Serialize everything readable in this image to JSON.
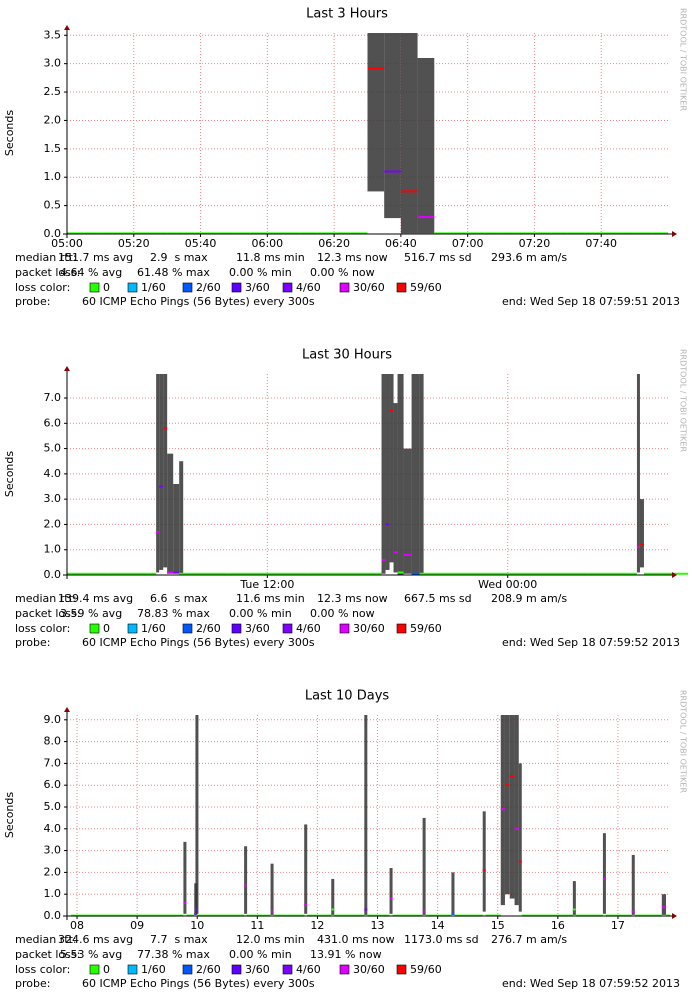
{
  "chart_data": [
    {
      "type": "smoke",
      "title": "Last 3 Hours",
      "y_label": "Seconds",
      "watermark": "RRDTOOL / TOBI OETIKER",
      "xlim": [
        300,
        480
      ],
      "xticks": [
        {
          "value": 300,
          "label": "05:00"
        },
        {
          "value": 320,
          "label": "05:20"
        },
        {
          "value": 340,
          "label": "05:40"
        },
        {
          "value": 360,
          "label": "06:00"
        },
        {
          "value": 380,
          "label": "06:20"
        },
        {
          "value": 400,
          "label": "06:40"
        },
        {
          "value": 420,
          "label": "07:00"
        },
        {
          "value": 440,
          "label": "07:20"
        },
        {
          "value": 460,
          "label": "07:40"
        }
      ],
      "ylim": [
        0,
        3.54
      ],
      "yticks": [
        {
          "value": 0,
          "label": "0.0"
        },
        {
          "value": 0.5,
          "label": "0.5"
        },
        {
          "value": 1,
          "label": "1.0"
        },
        {
          "value": 1.5,
          "label": "1.5"
        },
        {
          "value": 2,
          "label": "2.0"
        },
        {
          "value": 2.5,
          "label": "2.5"
        },
        {
          "value": 3,
          "label": "3.0"
        },
        {
          "value": 3.5,
          "label": "3.5"
        }
      ],
      "grid": true,
      "x": [
        300,
        305,
        310,
        315,
        320,
        325,
        330,
        335,
        340,
        345,
        350,
        355,
        360,
        365,
        370,
        375,
        380,
        385,
        390,
        395,
        400,
        405,
        410,
        415,
        420,
        425,
        430,
        435,
        440,
        445,
        450,
        455,
        460,
        465,
        470,
        475
      ],
      "values": [
        0.012,
        0.012,
        0.012,
        0.012,
        0.012,
        0.012,
        0.012,
        0.012,
        0.012,
        0.012,
        0.012,
        0.012,
        0.012,
        0.012,
        0.012,
        0.012,
        0.012,
        0.012,
        2.92,
        1.1,
        0.75,
        0.3,
        0.012,
        0.012,
        0.012,
        0.012,
        0.012,
        0.012,
        0.012,
        0.012,
        0.012,
        0.012,
        0.012,
        0.012,
        0.012,
        0.012
      ],
      "low": [
        null,
        null,
        null,
        null,
        null,
        null,
        null,
        null,
        null,
        null,
        null,
        null,
        null,
        null,
        null,
        null,
        null,
        null,
        0.75,
        0.28,
        0.012,
        0.012,
        null,
        null,
        null,
        null,
        null,
        null,
        null,
        null,
        null,
        null,
        null,
        null,
        null,
        null
      ],
      "high": [
        null,
        null,
        null,
        null,
        null,
        null,
        null,
        null,
        null,
        null,
        null,
        null,
        null,
        null,
        null,
        null,
        null,
        null,
        3.54,
        3.54,
        3.54,
        3.1,
        null,
        null,
        null,
        null,
        null,
        null,
        null,
        null,
        null,
        null,
        null,
        null,
        null,
        null
      ],
      "loss": [
        0,
        0,
        0,
        0,
        0,
        0,
        0,
        0,
        0,
        0,
        0,
        0,
        0,
        0,
        0,
        0,
        0,
        0,
        59,
        4,
        59,
        30,
        0,
        0,
        0,
        0,
        0,
        0,
        0,
        0,
        0,
        0,
        0,
        0,
        0,
        0
      ],
      "stats": [
        {
          "label": "median rtt:",
          "items": [
            "151.7 ms avg",
            "2.9  s max",
            "11.8 ms min",
            "12.3 ms now",
            "516.7 ms sd",
            "293.6 m am/s"
          ]
        },
        {
          "label": "packet loss:",
          "items": [
            "4.64 % avg",
            "61.48 % max",
            "0.00 % min",
            "0.00 % now"
          ]
        }
      ],
      "legend": {
        "label": "loss color:",
        "items": [
          {
            "value": 0,
            "label": "0",
            "color": "#26ff00"
          },
          {
            "value": 1,
            "label": "1/60",
            "color": "#00b8ff"
          },
          {
            "value": 2,
            "label": "2/60",
            "color": "#0059ff"
          },
          {
            "value": 3,
            "label": "3/60",
            "color": "#5e00ff"
          },
          {
            "value": 4,
            "label": "4/60",
            "color": "#7e00ff"
          },
          {
            "value": 30,
            "label": "30/60",
            "color": "#dd00ff"
          },
          {
            "value": 59,
            "label": "59/60",
            "color": "#ff0000"
          }
        ]
      },
      "probe": {
        "label": "probe:",
        "text": "60 ICMP Echo Pings (56 Bytes) every 300s"
      },
      "end": "end: Wed Sep 18 07:59:51 2013"
    },
    {
      "type": "smoke",
      "title": "Last 30 Hours",
      "y_label": "Seconds",
      "watermark": "RRDTOOL / TOBI OETIKER",
      "xlim": [
        2,
        32
      ],
      "xticks": [
        {
          "value": 12,
          "label": "Tue 12:00"
        },
        {
          "value": 24,
          "label": "Wed 00:00"
        }
      ],
      "ylim": [
        0,
        7.95
      ],
      "yticks": [
        {
          "value": 0,
          "label": "0.0"
        },
        {
          "value": 1,
          "label": "1.0"
        },
        {
          "value": 2,
          "label": "2.0"
        },
        {
          "value": 3,
          "label": "3.0"
        },
        {
          "value": 4,
          "label": "4.0"
        },
        {
          "value": 5,
          "label": "5.0"
        },
        {
          "value": 6,
          "label": "6.0"
        },
        {
          "value": 7,
          "label": "7.0"
        }
      ],
      "grid": true,
      "x": [
        2,
        4,
        6,
        6.45,
        6.6,
        6.8,
        7.0,
        7.3,
        7.6,
        7.8,
        10,
        14,
        17.5,
        17.7,
        17.9,
        18.1,
        18.3,
        18.5,
        18.8,
        19.2,
        19.6,
        19.8,
        24,
        28,
        30.2,
        30.45,
        30.6,
        30.8,
        31.9
      ],
      "values": [
        0.05,
        0.05,
        0.05,
        1.7,
        3.5,
        5.8,
        0.1,
        0.1,
        0.05,
        0.05,
        0.05,
        0.05,
        0.05,
        0.6,
        2.0,
        6.5,
        0.9,
        0.1,
        0.8,
        0.05,
        0.05,
        0.05,
        0.05,
        0.05,
        0.05,
        1.1,
        1.2,
        0.05,
        0.05
      ],
      "low": [
        null,
        null,
        null,
        0.1,
        0.2,
        0.3,
        0.05,
        0.05,
        0.02,
        null,
        null,
        null,
        null,
        0.05,
        0.2,
        0.5,
        0.1,
        0.02,
        0.05,
        0.02,
        0.02,
        null,
        null,
        null,
        null,
        0.1,
        0.3,
        null,
        null
      ],
      "high": [
        null,
        null,
        null,
        7.95,
        7.95,
        7.95,
        4.8,
        3.6,
        4.5,
        null,
        null,
        null,
        null,
        7.95,
        7.95,
        7.95,
        6.8,
        7.95,
        5.0,
        7.95,
        7.95,
        null,
        null,
        null,
        null,
        7.95,
        3.0,
        null,
        null
      ],
      "loss": [
        0,
        0,
        0,
        30,
        4,
        59,
        30,
        4,
        0,
        0,
        0,
        0,
        0,
        30,
        4,
        59,
        30,
        0,
        30,
        2,
        0,
        0,
        0,
        0,
        0,
        30,
        59,
        0,
        0
      ],
      "stats": [
        {
          "label": "median rtt:",
          "items": [
            "139.4 ms avg",
            "6.6  s max",
            "11.6 ms min",
            "12.3 ms now",
            "667.5 ms sd",
            "208.9 m am/s"
          ]
        },
        {
          "label": "packet loss:",
          "items": [
            "3.59 % avg",
            "78.83 % max",
            "0.00 % min",
            "0.00 % now"
          ]
        }
      ],
      "legend": {
        "label": "loss color:",
        "items": [
          {
            "value": 0,
            "label": "0",
            "color": "#26ff00"
          },
          {
            "value": 1,
            "label": "1/60",
            "color": "#00b8ff"
          },
          {
            "value": 2,
            "label": "2/60",
            "color": "#0059ff"
          },
          {
            "value": 3,
            "label": "3/60",
            "color": "#5e00ff"
          },
          {
            "value": 4,
            "label": "4/60",
            "color": "#7e00ff"
          },
          {
            "value": 30,
            "label": "30/60",
            "color": "#dd00ff"
          },
          {
            "value": 59,
            "label": "59/60",
            "color": "#ff0000"
          }
        ]
      },
      "probe": {
        "label": "probe:",
        "text": "60 ICMP Echo Pings (56 Bytes) every 300s"
      },
      "end": "end: Wed Sep 18 07:59:52 2013"
    },
    {
      "type": "smoke",
      "title": "Last 10 Days",
      "y_label": "Seconds",
      "watermark": "RRDTOOL / TOBI OETIKER",
      "xlim": [
        8.333,
        18.333
      ],
      "xticks": [
        {
          "value": 8.5,
          "label": "08"
        },
        {
          "value": 9.5,
          "label": "09"
        },
        {
          "value": 10.5,
          "label": "10"
        },
        {
          "value": 11.5,
          "label": "11"
        },
        {
          "value": 12.5,
          "label": "12"
        },
        {
          "value": 13.5,
          "label": "13"
        },
        {
          "value": 14.5,
          "label": "14"
        },
        {
          "value": 15.5,
          "label": "15"
        },
        {
          "value": 16.5,
          "label": "16"
        },
        {
          "value": 17.5,
          "label": "17"
        }
      ],
      "ylim": [
        0,
        9.22
      ],
      "yticks": [
        {
          "value": 0,
          "label": "0.0"
        },
        {
          "value": 1,
          "label": "1.0"
        },
        {
          "value": 2,
          "label": "2.0"
        },
        {
          "value": 3,
          "label": "3.0"
        },
        {
          "value": 4,
          "label": "4.0"
        },
        {
          "value": 5,
          "label": "5.0"
        },
        {
          "value": 6,
          "label": "6.0"
        },
        {
          "value": 7,
          "label": "7.0"
        },
        {
          "value": 8,
          "label": "8.0"
        },
        {
          "value": 9,
          "label": "9.0"
        }
      ],
      "grid": true,
      "x": [
        8.4,
        9.5,
        10.2,
        10.27,
        10.32,
        10.45,
        10.47,
        10.5,
        11.28,
        11.32,
        11.72,
        11.77,
        12.28,
        12.33,
        12.73,
        12.78,
        13.28,
        13.33,
        13.7,
        13.75,
        14.25,
        14.3,
        14.73,
        14.78,
        15.25,
        15.3,
        15.55,
        15.62,
        15.7,
        15.78,
        15.85,
        15.9,
        16.75,
        16.8,
        17.25,
        17.3,
        17.73,
        17.78,
        18.23,
        18.3
      ],
      "values": [
        0.02,
        0.02,
        0.02,
        0.6,
        0.02,
        0.1,
        0.3,
        0.02,
        1.4,
        0.02,
        0.2,
        0.02,
        0.5,
        0.02,
        0.3,
        0.02,
        0.3,
        0.02,
        0.8,
        0.02,
        0.2,
        0.02,
        0.1,
        0.02,
        2.1,
        0.02,
        4.9,
        6.0,
        6.4,
        4.0,
        2.5,
        0.02,
        0.3,
        0.02,
        1.7,
        0.02,
        0.2,
        0.02,
        0.4,
        0.02
      ],
      "low": [
        null,
        null,
        null,
        0.1,
        null,
        0.05,
        0.1,
        null,
        0.1,
        null,
        0.05,
        null,
        0.1,
        null,
        0.05,
        null,
        0.05,
        null,
        0.1,
        null,
        0.05,
        null,
        0.05,
        null,
        0.2,
        null,
        0.5,
        1.0,
        0.8,
        0.5,
        0.2,
        null,
        0.05,
        null,
        0.1,
        null,
        0.05,
        null,
        0.05,
        null
      ],
      "high": [
        null,
        null,
        null,
        3.4,
        null,
        1.5,
        9.22,
        null,
        3.2,
        null,
        2.4,
        null,
        4.2,
        null,
        1.7,
        null,
        9.22,
        null,
        2.2,
        null,
        4.5,
        null,
        2.0,
        null,
        4.8,
        null,
        9.22,
        9.22,
        9.22,
        9.22,
        7.0,
        null,
        1.6,
        null,
        3.8,
        null,
        2.8,
        null,
        1.0,
        null
      ],
      "loss": [
        0,
        0,
        0,
        30,
        0,
        4,
        4,
        0,
        30,
        0,
        30,
        0,
        30,
        0,
        0,
        0,
        4,
        0,
        30,
        0,
        30,
        0,
        2,
        0,
        59,
        0,
        30,
        59,
        59,
        30,
        59,
        0,
        0,
        0,
        30,
        0,
        30,
        0,
        30,
        0
      ],
      "stats": [
        {
          "label": "median rtt:",
          "items": [
            "324.6 ms avg",
            "7.7  s max",
            "12.0 ms min",
            "431.0 ms now",
            "1173.0 ms sd",
            "276.7 m am/s"
          ]
        },
        {
          "label": "packet loss:",
          "items": [
            "5.53 % avg",
            "77.38 % max",
            "0.00 % min",
            "13.91 % now"
          ]
        }
      ],
      "legend": {
        "label": "loss color:",
        "items": [
          {
            "value": 0,
            "label": "0",
            "color": "#26ff00"
          },
          {
            "value": 1,
            "label": "1/60",
            "color": "#00b8ff"
          },
          {
            "value": 2,
            "label": "2/60",
            "color": "#0059ff"
          },
          {
            "value": 3,
            "label": "3/60",
            "color": "#5e00ff"
          },
          {
            "value": 4,
            "label": "4/60",
            "color": "#7e00ff"
          },
          {
            "value": 30,
            "label": "30/60",
            "color": "#dd00ff"
          },
          {
            "value": 59,
            "label": "59/60",
            "color": "#ff0000"
          }
        ]
      },
      "probe": {
        "label": "probe:",
        "text": "60 ICMP Echo Pings (56 Bytes) every 300s"
      },
      "end": "end: Wed Sep 18 07:59:52 2013"
    }
  ]
}
